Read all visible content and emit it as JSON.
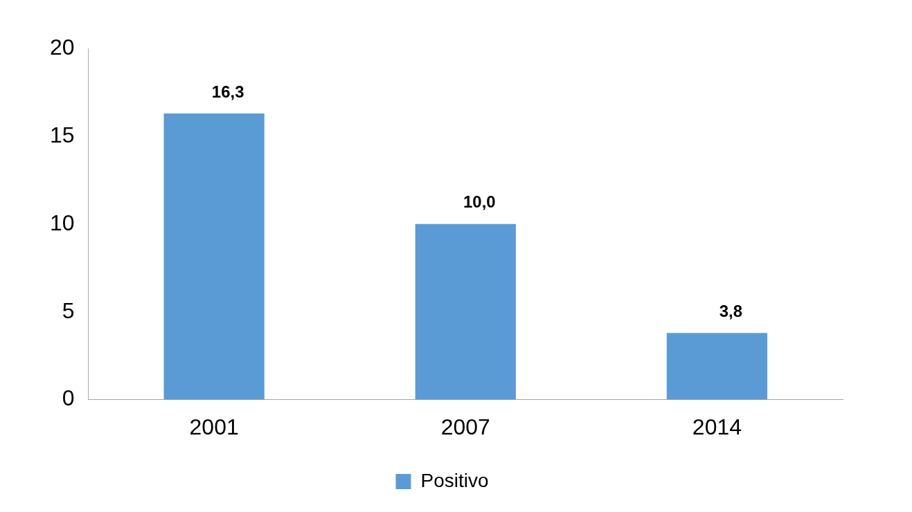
{
  "chart_data": {
    "type": "bar",
    "categories": [
      "2001",
      "2007",
      "2014"
    ],
    "series": [
      {
        "name": "Positivo",
        "color": "#5b9bd5",
        "values": [
          16.3,
          10.0,
          3.8
        ],
        "value_labels": [
          "16,3",
          "10,0",
          "3,8"
        ]
      }
    ],
    "ylim": [
      0,
      20
    ],
    "yticks": [
      0,
      5,
      10,
      15,
      20
    ],
    "grid": false,
    "legend": "bottom",
    "data_labels": true
  }
}
